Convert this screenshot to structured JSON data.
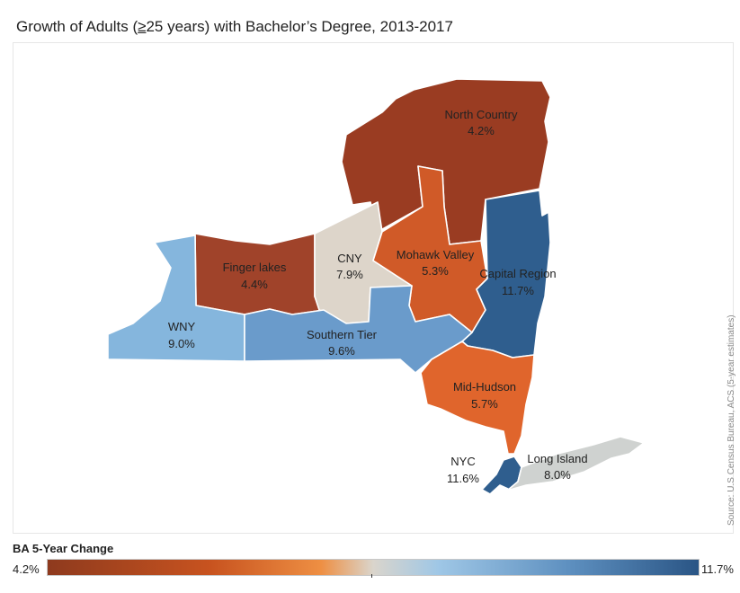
{
  "title": {
    "prefix": "Growth of Adults (",
    "ge": "≥",
    "suffix": "25 years) with Bachelor’s Degree, 2013-2017"
  },
  "source": "Source: U.S Census Bureau, ACS (5-year estimates)",
  "legend": {
    "title": "BA 5-Year Change",
    "min_label": "4.2%",
    "max_label": "11.7%",
    "min": 4.2,
    "max": 11.7,
    "colors": {
      "low": "#8e3a1e",
      "low_mid": "#c8531f",
      "mid_low": "#ee8f43",
      "mid": "#dad5cc",
      "mid_high": "#9fc7e6",
      "high_mid": "#5e90c0",
      "high": "#2a5585"
    }
  },
  "regions": [
    {
      "id": "north-country",
      "name": "North Country",
      "value": 4.2,
      "value_label": "4.2%",
      "color": "#9a3c22"
    },
    {
      "id": "finger-lakes",
      "name": "Finger lakes",
      "value": 4.4,
      "value_label": "4.4%",
      "color": "#a0432a"
    },
    {
      "id": "cny",
      "name": "CNY",
      "value": 7.9,
      "value_label": "7.9%",
      "color": "#ddd5ca"
    },
    {
      "id": "mohawk-valley",
      "name": "Mohawk Valley",
      "value": 5.3,
      "value_label": "5.3%",
      "color": "#d05a28"
    },
    {
      "id": "capital-region",
      "name": "Capital Region",
      "value": 11.7,
      "value_label": "11.7%",
      "color": "#2f5e8e"
    },
    {
      "id": "wny",
      "name": "WNY",
      "value": 9.0,
      "value_label": "9.0%",
      "color": "#85b6dd"
    },
    {
      "id": "southern-tier",
      "name": "Southern Tier",
      "value": 9.6,
      "value_label": "9.6%",
      "color": "#6a9bcb"
    },
    {
      "id": "mid-hudson",
      "name": "Mid-Hudson",
      "value": 5.7,
      "value_label": "5.7%",
      "color": "#e0652c"
    },
    {
      "id": "nyc",
      "name": "NYC",
      "value": 11.6,
      "value_label": "11.6%",
      "color": "#2f5e8e"
    },
    {
      "id": "long-island",
      "name": "Long Island",
      "value": 8.0,
      "value_label": "8.0%",
      "color": "#cfd2d0"
    }
  ]
}
